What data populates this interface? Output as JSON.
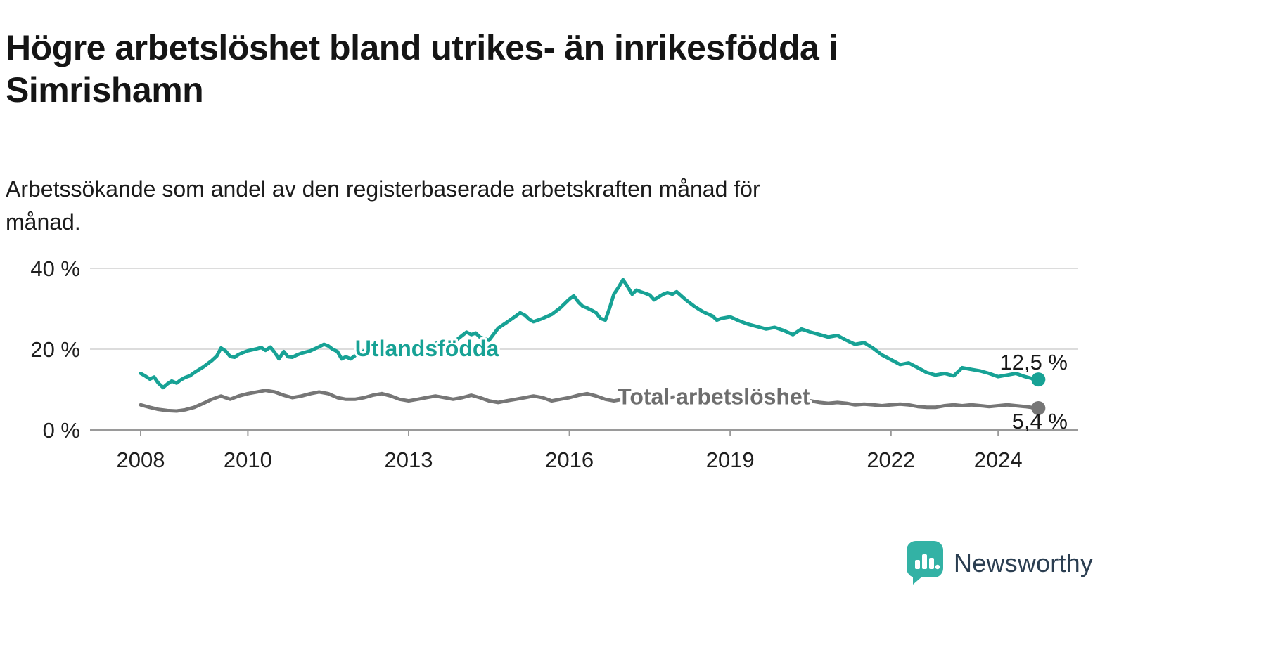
{
  "title_lines": [
    "Högre arbetslöshet bland utrikes- än inrikesfödda i",
    "Simrishamn"
  ],
  "subtitle_lines": [
    "Arbetssökande som andel av den registerbaserade arbetskraften månad för",
    "månad."
  ],
  "chart_data": {
    "type": "line",
    "title": "Högre arbetslöshet bland utrikes- än inrikesfödda i Simrishamn",
    "subtitle": "Arbetssökande som andel av den registerbaserade arbetskraften månad för månad.",
    "xlabel": "",
    "ylabel": "",
    "ylim": [
      0,
      44
    ],
    "x_range": [
      2008,
      2024.75
    ],
    "grid": true,
    "legend_position": "inline",
    "y_ticks": [
      {
        "label": "40 %",
        "value": 40
      },
      {
        "label": "20 %",
        "value": 20
      },
      {
        "label": "0 %",
        "value": 0
      }
    ],
    "x_ticks": [
      {
        "label": "2008",
        "value": 2008
      },
      {
        "label": "2010",
        "value": 2010
      },
      {
        "label": "2013",
        "value": 2013
      },
      {
        "label": "2016",
        "value": 2016
      },
      {
        "label": "2019",
        "value": 2019
      },
      {
        "label": "2022",
        "value": 2022
      },
      {
        "label": "2024",
        "value": 2024
      }
    ],
    "colors": {
      "grid": "#dcdcdc",
      "axis": "#9a9a9a",
      "tick_text": "#1f1f1f",
      "value_label": "#191919"
    },
    "series": [
      {
        "name": "Utlandsfödda",
        "color": "#17a295",
        "label_color": "#17a295",
        "label_pos": {
          "x": 2012.0,
          "y": 20.2
        },
        "end_label": "12,5 %",
        "end_value": 12.5,
        "end_label_position": "above",
        "points": [
          [
            2008.0,
            14.0
          ],
          [
            2008.08,
            13.4
          ],
          [
            2008.17,
            12.6
          ],
          [
            2008.25,
            13.1
          ],
          [
            2008.33,
            11.6
          ],
          [
            2008.42,
            10.5
          ],
          [
            2008.5,
            11.4
          ],
          [
            2008.58,
            12.1
          ],
          [
            2008.67,
            11.6
          ],
          [
            2008.75,
            12.4
          ],
          [
            2008.83,
            13.0
          ],
          [
            2008.92,
            13.4
          ],
          [
            2009.0,
            14.2
          ],
          [
            2009.17,
            15.6
          ],
          [
            2009.33,
            17.2
          ],
          [
            2009.42,
            18.3
          ],
          [
            2009.5,
            20.3
          ],
          [
            2009.58,
            19.6
          ],
          [
            2009.67,
            18.2
          ],
          [
            2009.75,
            18.0
          ],
          [
            2009.83,
            18.7
          ],
          [
            2009.92,
            19.2
          ],
          [
            2010.0,
            19.6
          ],
          [
            2010.17,
            20.1
          ],
          [
            2010.25,
            20.4
          ],
          [
            2010.33,
            19.7
          ],
          [
            2010.42,
            20.5
          ],
          [
            2010.5,
            19.2
          ],
          [
            2010.58,
            17.6
          ],
          [
            2010.67,
            19.4
          ],
          [
            2010.75,
            18.1
          ],
          [
            2010.83,
            18.0
          ],
          [
            2010.92,
            18.6
          ],
          [
            2011.0,
            19.0
          ],
          [
            2011.17,
            19.6
          ],
          [
            2011.33,
            20.6
          ],
          [
            2011.42,
            21.2
          ],
          [
            2011.5,
            20.8
          ],
          [
            2011.58,
            20.0
          ],
          [
            2011.67,
            19.4
          ],
          [
            2011.75,
            17.6
          ],
          [
            2011.83,
            18.1
          ],
          [
            2011.92,
            17.6
          ],
          [
            2012.0,
            18.4
          ],
          [
            2012.17,
            19.6
          ],
          [
            2012.33,
            20.4
          ],
          [
            2012.5,
            21.3
          ],
          [
            2012.67,
            20.2
          ],
          [
            2012.83,
            19.6
          ],
          [
            2013.0,
            20.4
          ],
          [
            2013.17,
            21.0
          ],
          [
            2013.33,
            20.2
          ],
          [
            2013.5,
            21.4
          ],
          [
            2013.67,
            22.0
          ],
          [
            2013.83,
            21.6
          ],
          [
            2014.0,
            23.4
          ],
          [
            2014.08,
            24.2
          ],
          [
            2014.17,
            23.6
          ],
          [
            2014.25,
            24.0
          ],
          [
            2014.33,
            23.0
          ],
          [
            2014.5,
            22.2
          ],
          [
            2014.67,
            25.2
          ],
          [
            2014.83,
            26.6
          ],
          [
            2015.0,
            28.2
          ],
          [
            2015.08,
            29.0
          ],
          [
            2015.17,
            28.4
          ],
          [
            2015.25,
            27.4
          ],
          [
            2015.33,
            26.8
          ],
          [
            2015.5,
            27.6
          ],
          [
            2015.67,
            28.6
          ],
          [
            2015.83,
            30.2
          ],
          [
            2016.0,
            32.4
          ],
          [
            2016.08,
            33.2
          ],
          [
            2016.17,
            31.6
          ],
          [
            2016.25,
            30.6
          ],
          [
            2016.33,
            30.2
          ],
          [
            2016.42,
            29.6
          ],
          [
            2016.5,
            29.0
          ],
          [
            2016.58,
            27.6
          ],
          [
            2016.67,
            27.2
          ],
          [
            2016.75,
            30.2
          ],
          [
            2016.83,
            33.6
          ],
          [
            2016.92,
            35.4
          ],
          [
            2017.0,
            37.2
          ],
          [
            2017.08,
            35.6
          ],
          [
            2017.17,
            33.6
          ],
          [
            2017.25,
            34.6
          ],
          [
            2017.33,
            34.2
          ],
          [
            2017.42,
            33.8
          ],
          [
            2017.5,
            33.4
          ],
          [
            2017.58,
            32.2
          ],
          [
            2017.67,
            33.0
          ],
          [
            2017.75,
            33.6
          ],
          [
            2017.83,
            34.0
          ],
          [
            2017.92,
            33.6
          ],
          [
            2018.0,
            34.2
          ],
          [
            2018.17,
            32.2
          ],
          [
            2018.33,
            30.6
          ],
          [
            2018.5,
            29.2
          ],
          [
            2018.67,
            28.2
          ],
          [
            2018.75,
            27.2
          ],
          [
            2018.83,
            27.6
          ],
          [
            2019.0,
            28.0
          ],
          [
            2019.17,
            27.0
          ],
          [
            2019.33,
            26.2
          ],
          [
            2019.5,
            25.6
          ],
          [
            2019.67,
            25.0
          ],
          [
            2019.83,
            25.4
          ],
          [
            2020.0,
            24.6
          ],
          [
            2020.17,
            23.6
          ],
          [
            2020.33,
            25.0
          ],
          [
            2020.5,
            24.2
          ],
          [
            2020.67,
            23.6
          ],
          [
            2020.83,
            23.0
          ],
          [
            2021.0,
            23.4
          ],
          [
            2021.17,
            22.2
          ],
          [
            2021.33,
            21.2
          ],
          [
            2021.5,
            21.6
          ],
          [
            2021.67,
            20.2
          ],
          [
            2021.83,
            18.6
          ],
          [
            2022.0,
            17.4
          ],
          [
            2022.17,
            16.2
          ],
          [
            2022.33,
            16.6
          ],
          [
            2022.5,
            15.4
          ],
          [
            2022.67,
            14.2
          ],
          [
            2022.83,
            13.6
          ],
          [
            2023.0,
            14.0
          ],
          [
            2023.17,
            13.4
          ],
          [
            2023.33,
            15.4
          ],
          [
            2023.5,
            15.0
          ],
          [
            2023.67,
            14.6
          ],
          [
            2023.83,
            14.0
          ],
          [
            2024.0,
            13.2
          ],
          [
            2024.17,
            13.6
          ],
          [
            2024.33,
            14.0
          ],
          [
            2024.5,
            13.2
          ],
          [
            2024.67,
            12.6
          ],
          [
            2024.75,
            12.5
          ]
        ]
      },
      {
        "name": "Total arbetslöshet",
        "color": "#767676",
        "label_color": "#6e6e6e",
        "label_pos": {
          "x": 2016.9,
          "y": 8.3
        },
        "end_label": "5,4 %",
        "end_value": 5.4,
        "end_label_position": "below",
        "points": [
          [
            2008.0,
            6.2
          ],
          [
            2008.17,
            5.6
          ],
          [
            2008.33,
            5.1
          ],
          [
            2008.5,
            4.8
          ],
          [
            2008.67,
            4.7
          ],
          [
            2008.83,
            5.0
          ],
          [
            2009.0,
            5.6
          ],
          [
            2009.17,
            6.6
          ],
          [
            2009.33,
            7.6
          ],
          [
            2009.5,
            8.4
          ],
          [
            2009.58,
            8.0
          ],
          [
            2009.67,
            7.6
          ],
          [
            2009.83,
            8.4
          ],
          [
            2010.0,
            9.0
          ],
          [
            2010.17,
            9.4
          ],
          [
            2010.33,
            9.8
          ],
          [
            2010.5,
            9.4
          ],
          [
            2010.67,
            8.6
          ],
          [
            2010.83,
            8.0
          ],
          [
            2011.0,
            8.4
          ],
          [
            2011.17,
            9.0
          ],
          [
            2011.33,
            9.4
          ],
          [
            2011.5,
            9.0
          ],
          [
            2011.67,
            8.0
          ],
          [
            2011.83,
            7.6
          ],
          [
            2012.0,
            7.6
          ],
          [
            2012.17,
            8.0
          ],
          [
            2012.33,
            8.6
          ],
          [
            2012.5,
            9.0
          ],
          [
            2012.67,
            8.4
          ],
          [
            2012.83,
            7.6
          ],
          [
            2013.0,
            7.2
          ],
          [
            2013.17,
            7.6
          ],
          [
            2013.33,
            8.0
          ],
          [
            2013.5,
            8.4
          ],
          [
            2013.67,
            8.0
          ],
          [
            2013.83,
            7.6
          ],
          [
            2014.0,
            8.0
          ],
          [
            2014.17,
            8.6
          ],
          [
            2014.33,
            8.0
          ],
          [
            2014.5,
            7.2
          ],
          [
            2014.67,
            6.8
          ],
          [
            2014.83,
            7.2
          ],
          [
            2015.0,
            7.6
          ],
          [
            2015.17,
            8.0
          ],
          [
            2015.33,
            8.4
          ],
          [
            2015.5,
            8.0
          ],
          [
            2015.67,
            7.2
          ],
          [
            2015.83,
            7.6
          ],
          [
            2016.0,
            8.0
          ],
          [
            2016.17,
            8.6
          ],
          [
            2016.33,
            9.0
          ],
          [
            2016.5,
            8.4
          ],
          [
            2016.67,
            7.6
          ],
          [
            2016.83,
            7.2
          ],
          [
            2017.0,
            7.6
          ],
          [
            2017.17,
            8.0
          ],
          [
            2017.33,
            8.4
          ],
          [
            2017.5,
            8.0
          ],
          [
            2017.67,
            7.6
          ],
          [
            2017.83,
            8.0
          ],
          [
            2018.0,
            8.2
          ],
          [
            2018.17,
            8.4
          ],
          [
            2018.33,
            8.0
          ],
          [
            2018.5,
            7.6
          ],
          [
            2018.67,
            7.2
          ],
          [
            2018.83,
            7.4
          ],
          [
            2019.0,
            7.4
          ],
          [
            2019.17,
            7.2
          ],
          [
            2019.33,
            7.0
          ],
          [
            2019.5,
            6.8
          ],
          [
            2019.67,
            6.6
          ],
          [
            2019.83,
            6.8
          ],
          [
            2020.0,
            7.0
          ],
          [
            2020.17,
            6.8
          ],
          [
            2020.33,
            7.0
          ],
          [
            2020.5,
            7.2
          ],
          [
            2020.67,
            6.8
          ],
          [
            2020.83,
            6.6
          ],
          [
            2021.0,
            6.8
          ],
          [
            2021.17,
            6.6
          ],
          [
            2021.33,
            6.2
          ],
          [
            2021.5,
            6.4
          ],
          [
            2021.67,
            6.2
          ],
          [
            2021.83,
            6.0
          ],
          [
            2022.0,
            6.2
          ],
          [
            2022.17,
            6.4
          ],
          [
            2022.33,
            6.2
          ],
          [
            2022.5,
            5.8
          ],
          [
            2022.67,
            5.6
          ],
          [
            2022.83,
            5.6
          ],
          [
            2023.0,
            6.0
          ],
          [
            2023.17,
            6.2
          ],
          [
            2023.33,
            6.0
          ],
          [
            2023.5,
            6.2
          ],
          [
            2023.67,
            6.0
          ],
          [
            2023.83,
            5.8
          ],
          [
            2024.0,
            6.0
          ],
          [
            2024.17,
            6.2
          ],
          [
            2024.33,
            6.0
          ],
          [
            2024.5,
            5.8
          ],
          [
            2024.67,
            5.5
          ],
          [
            2024.75,
            5.4
          ]
        ]
      }
    ]
  },
  "branding": {
    "logo_text": "Newsworthy",
    "icon": "bar-chart-speech-bubble-icon",
    "icon_color": "#33b2a5",
    "text_color": "#2b3e51"
  }
}
